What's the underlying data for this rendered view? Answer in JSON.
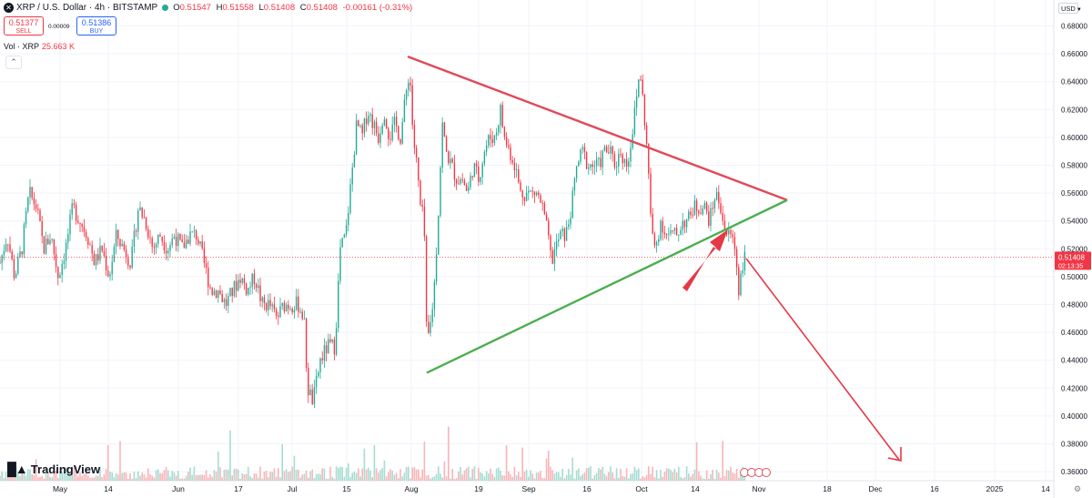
{
  "header": {
    "symbol_logo": "✕",
    "title": "XRP / U.S. Dollar · 4h · BITSTAMP",
    "ohlc": {
      "o_label": "O",
      "o": "0.51547",
      "h_label": "H",
      "h": "0.51558",
      "l_label": "L",
      "l": "0.51408",
      "c_label": "C",
      "c": "0.51408",
      "change": "-0.00161 (-0.31%)"
    },
    "sell_price": "0.51377",
    "sell_label": "SELL",
    "buy_price": "0.51386",
    "buy_label": "BUY",
    "spread": "0.00009",
    "volume_label": "Vol · XRP",
    "volume_value": "25.663 K",
    "collapse_icon": "chevron-up-icon"
  },
  "price_scale": {
    "currency": "USD",
    "ticks": [
      "0.68000",
      "0.66000",
      "0.64000",
      "0.62000",
      "0.60000",
      "0.58000",
      "0.56000",
      "0.54000",
      "0.52000",
      "0.50000",
      "0.48000",
      "0.46000",
      "0.44000",
      "0.42000",
      "0.40000",
      "0.38000",
      "0.36000"
    ],
    "last_price": "0.51408",
    "countdown": "02:13:35"
  },
  "time_axis": {
    "labels": [
      "May",
      "14",
      "Jun",
      "17",
      "Jul",
      "15",
      "Aug",
      "19",
      "Sep",
      "16",
      "Oct",
      "14",
      "Nov",
      "18",
      "Dec",
      "16",
      "2025",
      "14"
    ],
    "bottom_right_icon": "settings-icon"
  },
  "branding": "TradingView",
  "colors": {
    "up": "#22ab94",
    "down": "#f23645",
    "resistance_line": "#e04a5a",
    "support_line": "#4caf50",
    "arrow": "#e53946",
    "volume_up": "#a7dcd1",
    "volume_down": "#f8b5b8"
  },
  "chart_data": {
    "type": "candlestick",
    "symbol": "XRP / U.S. Dollar",
    "interval": "4h",
    "exchange": "BITSTAMP",
    "ylim": [
      0.355,
      0.69
    ],
    "x_ticks": [
      "May",
      "14",
      "Jun",
      "17",
      "Jul",
      "15",
      "Aug",
      "19",
      "Sep",
      "16",
      "Oct",
      "14",
      "Nov",
      "18",
      "Dec",
      "16",
      "2025",
      "14"
    ],
    "price_path": [
      [
        0,
        0.51
      ],
      [
        8,
        0.53
      ],
      [
        16,
        0.5
      ],
      [
        24,
        0.52
      ],
      [
        32,
        0.56
      ],
      [
        40,
        0.55
      ],
      [
        48,
        0.52
      ],
      [
        56,
        0.53
      ],
      [
        64,
        0.5
      ],
      [
        72,
        0.52
      ],
      [
        80,
        0.55
      ],
      [
        88,
        0.54
      ],
      [
        96,
        0.53
      ],
      [
        104,
        0.51
      ],
      [
        112,
        0.52
      ],
      [
        120,
        0.5
      ],
      [
        128,
        0.53
      ],
      [
        136,
        0.52
      ],
      [
        144,
        0.51
      ],
      [
        152,
        0.55
      ],
      [
        160,
        0.54
      ],
      [
        168,
        0.52
      ],
      [
        176,
        0.53
      ],
      [
        184,
        0.52
      ],
      [
        192,
        0.53
      ],
      [
        200,
        0.52
      ],
      [
        208,
        0.53
      ],
      [
        216,
        0.53
      ],
      [
        224,
        0.51
      ],
      [
        232,
        0.49
      ],
      [
        240,
        0.49
      ],
      [
        248,
        0.48
      ],
      [
        256,
        0.49
      ],
      [
        264,
        0.5
      ],
      [
        272,
        0.49
      ],
      [
        280,
        0.5
      ],
      [
        288,
        0.48
      ],
      [
        296,
        0.48
      ],
      [
        304,
        0.47
      ],
      [
        312,
        0.48
      ],
      [
        320,
        0.48
      ],
      [
        328,
        0.48
      ],
      [
        334,
        0.47
      ],
      [
        338,
        0.42
      ],
      [
        344,
        0.41
      ],
      [
        352,
        0.44
      ],
      [
        360,
        0.45
      ],
      [
        368,
        0.45
      ],
      [
        374,
        0.52
      ],
      [
        380,
        0.53
      ],
      [
        386,
        0.57
      ],
      [
        392,
        0.61
      ],
      [
        398,
        0.6
      ],
      [
        404,
        0.62
      ],
      [
        410,
        0.61
      ],
      [
        416,
        0.6
      ],
      [
        422,
        0.62
      ],
      [
        428,
        0.6
      ],
      [
        434,
        0.61
      ],
      [
        440,
        0.6
      ],
      [
        446,
        0.63
      ],
      [
        450,
        0.65
      ],
      [
        454,
        0.6
      ],
      [
        458,
        0.58
      ],
      [
        462,
        0.55
      ],
      [
        466,
        0.54
      ],
      [
        469,
        0.45
      ],
      [
        474,
        0.47
      ],
      [
        478,
        0.5
      ],
      [
        482,
        0.55
      ],
      [
        486,
        0.61
      ],
      [
        490,
        0.59
      ],
      [
        496,
        0.58
      ],
      [
        502,
        0.57
      ],
      [
        508,
        0.57
      ],
      [
        514,
        0.56
      ],
      [
        520,
        0.58
      ],
      [
        526,
        0.57
      ],
      [
        532,
        0.59
      ],
      [
        538,
        0.6
      ],
      [
        544,
        0.6
      ],
      [
        550,
        0.62
      ],
      [
        554,
        0.6
      ],
      [
        560,
        0.59
      ],
      [
        566,
        0.58
      ],
      [
        572,
        0.56
      ],
      [
        578,
        0.56
      ],
      [
        584,
        0.56
      ],
      [
        590,
        0.56
      ],
      [
        596,
        0.55
      ],
      [
        602,
        0.53
      ],
      [
        606,
        0.51
      ],
      [
        610,
        0.52
      ],
      [
        616,
        0.53
      ],
      [
        622,
        0.53
      ],
      [
        628,
        0.55
      ],
      [
        634,
        0.58
      ],
      [
        640,
        0.59
      ],
      [
        646,
        0.58
      ],
      [
        652,
        0.58
      ],
      [
        658,
        0.58
      ],
      [
        664,
        0.59
      ],
      [
        670,
        0.59
      ],
      [
        676,
        0.58
      ],
      [
        682,
        0.59
      ],
      [
        688,
        0.58
      ],
      [
        692,
        0.59
      ],
      [
        696,
        0.61
      ],
      [
        700,
        0.63
      ],
      [
        703,
        0.65
      ],
      [
        706,
        0.63
      ],
      [
        710,
        0.6
      ],
      [
        714,
        0.56
      ],
      [
        716,
        0.53
      ],
      [
        720,
        0.52
      ],
      [
        726,
        0.54
      ],
      [
        732,
        0.53
      ],
      [
        738,
        0.53
      ],
      [
        744,
        0.53
      ],
      [
        750,
        0.54
      ],
      [
        756,
        0.54
      ],
      [
        762,
        0.55
      ],
      [
        768,
        0.55
      ],
      [
        774,
        0.55
      ],
      [
        780,
        0.54
      ],
      [
        786,
        0.56
      ],
      [
        792,
        0.55
      ],
      [
        798,
        0.53
      ],
      [
        804,
        0.53
      ],
      [
        808,
        0.52
      ],
      [
        812,
        0.49
      ],
      [
        816,
        0.51
      ],
      [
        820,
        0.514
      ]
    ],
    "drawings": {
      "resistance_line": {
        "from": [
          "Aug",
          0.658
        ],
        "to": [
          "Nov",
          0.555
        ]
      },
      "support_line": {
        "from": [
          "Aug",
          0.431
        ],
        "to": [
          "Nov",
          0.555
        ]
      },
      "annotation_arrows": [
        "up-arrow toward support break",
        "down-arrow projection toward 0.37"
      ]
    }
  }
}
